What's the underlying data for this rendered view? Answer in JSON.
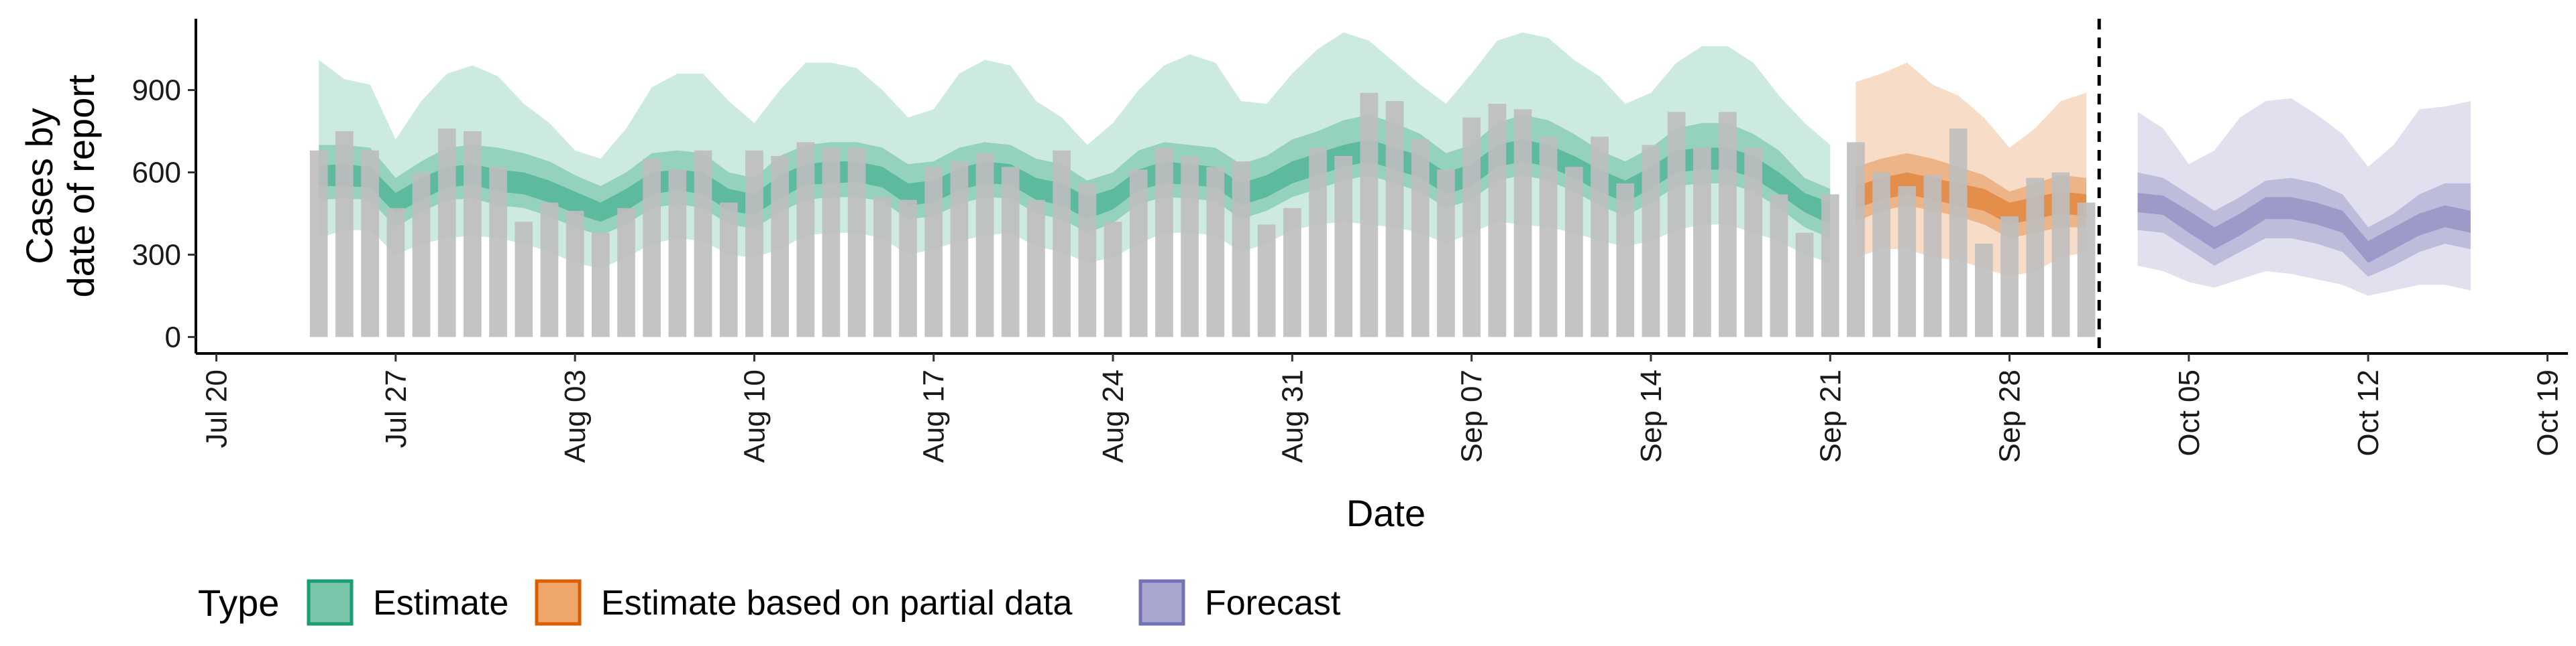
{
  "chart_data": {
    "type": "bar",
    "xlabel": "Date",
    "ylabel": [
      "Cases by",
      "date of report"
    ],
    "x_ticks": [
      "Jul 20",
      "Jul 27",
      "Aug 03",
      "Aug 10",
      "Aug 17",
      "Aug 24",
      "Aug 31",
      "Sep 07",
      "Sep 14",
      "Sep 21",
      "Sep 28",
      "Oct 05",
      "Oct 12",
      "Oct 19"
    ],
    "x_tick_days": [
      0,
      7,
      14,
      21,
      28,
      35,
      42,
      49,
      56,
      63,
      70,
      77,
      84,
      91
    ],
    "x_range_days": [
      -0.8,
      91.8
    ],
    "y_ticks": [
      0,
      300,
      600,
      900
    ],
    "ylim": [
      -60,
      1160
    ],
    "first_date": "Jul 24",
    "forecast_cutoff_date": "Oct 02",
    "legend": {
      "title": "Type",
      "position": "bottom",
      "items": [
        {
          "label": "Estimate",
          "fill": "#7ac6ab",
          "stroke": "#1b9e77"
        },
        {
          "label": "Estimate based on partial data",
          "fill": "#eea768",
          "stroke": "#d95f02"
        },
        {
          "label": "Forecast",
          "fill": "#a9a6d0",
          "stroke": "#7570b3"
        }
      ]
    },
    "colors": {
      "bars": "#bebebe",
      "estimate": "#1b9e77",
      "partial": "#d95f02",
      "forecast": "#7570b3",
      "cutoff_line": "#000000"
    },
    "reported_cases": [
      680,
      750,
      680,
      470,
      600,
      760,
      750,
      620,
      420,
      490,
      460,
      380,
      470,
      650,
      610,
      680,
      490,
      680,
      660,
      710,
      690,
      690,
      510,
      500,
      620,
      640,
      670,
      620,
      500,
      680,
      560,
      420,
      610,
      690,
      660,
      620,
      640,
      410,
      470,
      690,
      660,
      890,
      860,
      720,
      610,
      800,
      850,
      830,
      730,
      620,
      730,
      560,
      700,
      820,
      690,
      820,
      690,
      520,
      380,
      520,
      710,
      600,
      550,
      590,
      760,
      340,
      440,
      580,
      600,
      490
    ],
    "series": [
      {
        "name": "Estimate",
        "days": [
          4,
          5,
          6,
          7,
          8,
          9,
          10,
          11,
          12,
          13,
          14,
          15,
          16,
          17,
          18,
          19,
          20,
          21,
          22,
          23,
          24,
          25,
          26,
          27,
          28,
          29,
          30,
          31,
          32,
          33,
          34,
          35,
          36,
          37,
          38,
          39,
          40,
          41,
          42,
          43,
          44,
          45,
          46,
          47,
          48,
          49,
          50,
          51,
          52,
          53,
          54,
          55,
          56,
          57,
          58,
          59,
          60,
          61,
          62,
          63
        ],
        "median": [
          585,
          590,
          580,
          490,
          540,
          580,
          590,
          570,
          560,
          530,
          490,
          450,
          500,
          560,
          570,
          560,
          500,
          480,
          550,
          590,
          600,
          600,
          580,
          520,
          530,
          575,
          600,
          590,
          540,
          520,
          470,
          500,
          570,
          600,
          590,
          580,
          520,
          550,
          600,
          630,
          660,
          680,
          650,
          620,
          560,
          590,
          660,
          680,
          660,
          620,
          570,
          530,
          580,
          640,
          650,
          650,
          620,
          560,
          490,
          450
        ],
        "inner_low": [
          550,
          550,
          545,
          450,
          500,
          545,
          555,
          530,
          520,
          490,
          450,
          420,
          460,
          520,
          535,
          520,
          460,
          445,
          505,
          555,
          560,
          565,
          545,
          480,
          490,
          535,
          560,
          555,
          500,
          480,
          430,
          465,
          535,
          560,
          555,
          545,
          480,
          510,
          560,
          590,
          620,
          640,
          610,
          580,
          520,
          550,
          620,
          640,
          620,
          580,
          530,
          490,
          540,
          600,
          610,
          610,
          580,
          520,
          455,
          410
        ],
        "inner_high": [
          625,
          630,
          620,
          525,
          580,
          620,
          630,
          610,
          600,
          570,
          530,
          490,
          540,
          600,
          610,
          600,
          540,
          520,
          590,
          630,
          640,
          640,
          620,
          560,
          570,
          615,
          640,
          630,
          580,
          560,
          510,
          540,
          610,
          640,
          630,
          620,
          560,
          590,
          640,
          670,
          700,
          720,
          690,
          660,
          600,
          630,
          700,
          720,
          700,
          660,
          610,
          570,
          620,
          680,
          690,
          690,
          660,
          600,
          525,
          490
        ],
        "mid_low": [
          500,
          505,
          500,
          400,
          455,
          500,
          505,
          480,
          470,
          440,
          400,
          370,
          410,
          470,
          485,
          470,
          410,
          395,
          455,
          500,
          510,
          510,
          495,
          430,
          440,
          485,
          510,
          505,
          450,
          430,
          380,
          415,
          485,
          510,
          505,
          495,
          430,
          460,
          510,
          540,
          570,
          590,
          560,
          530,
          470,
          500,
          570,
          590,
          570,
          530,
          480,
          440,
          490,
          550,
          560,
          560,
          530,
          470,
          400,
          360
        ],
        "mid_high": [
          700,
          700,
          690,
          580,
          640,
          690,
          700,
          690,
          670,
          640,
          590,
          550,
          600,
          670,
          680,
          670,
          600,
          580,
          660,
          700,
          710,
          710,
          690,
          630,
          640,
          690,
          710,
          700,
          650,
          630,
          570,
          600,
          680,
          710,
          700,
          690,
          630,
          660,
          720,
          750,
          790,
          810,
          780,
          740,
          670,
          700,
          780,
          810,
          790,
          740,
          680,
          640,
          690,
          760,
          780,
          780,
          740,
          680,
          580,
          540
        ],
        "outer_low": [
          360,
          390,
          390,
          300,
          340,
          360,
          370,
          360,
          340,
          310,
          270,
          250,
          290,
          340,
          360,
          350,
          300,
          290,
          320,
          370,
          380,
          380,
          360,
          300,
          320,
          350,
          370,
          380,
          330,
          310,
          270,
          290,
          340,
          380,
          380,
          370,
          310,
          340,
          390,
          410,
          420,
          410,
          400,
          380,
          340,
          380,
          420,
          410,
          400,
          380,
          350,
          330,
          350,
          390,
          410,
          410,
          380,
          350,
          300,
          270
        ],
        "outer_high": [
          1010,
          940,
          920,
          720,
          860,
          960,
          990,
          950,
          850,
          780,
          680,
          650,
          760,
          910,
          960,
          960,
          860,
          780,
          900,
          1000,
          1000,
          980,
          900,
          800,
          830,
          960,
          1010,
          990,
          860,
          800,
          700,
          780,
          900,
          990,
          1030,
          1000,
          860,
          850,
          960,
          1050,
          1110,
          1080,
          1000,
          920,
          850,
          960,
          1080,
          1110,
          1090,
          1010,
          950,
          850,
          890,
          1000,
          1060,
          1060,
          1000,
          880,
          780,
          700
        ]
      },
      {
        "name": "Estimate based on partial data",
        "days": [
          64,
          65,
          66,
          67,
          68,
          69,
          70,
          71,
          72,
          73
        ],
        "median": [
          510,
          540,
          560,
          540,
          520,
          500,
          450,
          470,
          490,
          480
        ],
        "inner_low": [
          470,
          500,
          520,
          500,
          480,
          460,
          410,
          430,
          450,
          440
        ],
        "inner_high": [
          550,
          580,
          600,
          580,
          560,
          540,
          490,
          510,
          530,
          520
        ],
        "mid_low": [
          420,
          460,
          480,
          460,
          440,
          410,
          360,
          380,
          400,
          400
        ],
        "mid_high": [
          620,
          650,
          670,
          650,
          620,
          590,
          530,
          560,
          590,
          580
        ],
        "outer_low": [
          290,
          320,
          320,
          290,
          280,
          250,
          220,
          240,
          290,
          310
        ],
        "outer_high": [
          930,
          960,
          1000,
          920,
          880,
          800,
          690,
          760,
          860,
          890
        ]
      },
      {
        "name": "Forecast",
        "days": [
          75,
          76,
          77,
          78,
          79,
          80,
          81,
          82,
          83,
          84,
          85,
          86,
          87,
          88
        ],
        "median": [
          490,
          480,
          420,
          360,
          410,
          470,
          470,
          450,
          420,
          310,
          360,
          410,
          440,
          420
        ],
        "inner_low": [
          455,
          445,
          380,
          320,
          370,
          430,
          430,
          410,
          380,
          270,
          320,
          370,
          400,
          380
        ],
        "inner_high": [
          525,
          515,
          460,
          400,
          450,
          510,
          510,
          490,
          460,
          350,
          400,
          450,
          480,
          460
        ],
        "mid_low": [
          390,
          380,
          320,
          260,
          310,
          360,
          360,
          340,
          310,
          220,
          260,
          310,
          340,
          320
        ],
        "mid_high": [
          600,
          580,
          520,
          460,
          510,
          570,
          580,
          560,
          520,
          400,
          450,
          520,
          560,
          560
        ],
        "outer_low": [
          260,
          240,
          200,
          180,
          210,
          240,
          230,
          210,
          190,
          150,
          170,
          190,
          190,
          170
        ],
        "outer_high": [
          820,
          760,
          630,
          680,
          800,
          860,
          870,
          810,
          740,
          620,
          700,
          830,
          840,
          860
        ]
      }
    ]
  }
}
